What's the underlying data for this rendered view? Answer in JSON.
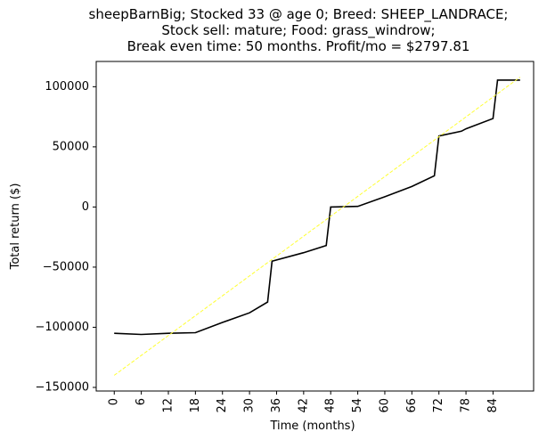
{
  "chart_data": {
    "type": "line",
    "title_lines": [
      "sheepBarnBig; Stocked 33 @ age 0; Breed: SHEEP_LANDRACE;",
      "Stock sell: mature; Food: grass_windrow;",
      "Break even time: 50 months. Profit/mo = $2797.81"
    ],
    "xlabel": "Time (months)",
    "ylabel": "Total return ($)",
    "xlim": [
      -4,
      93
    ],
    "ylim": [
      -153000,
      121000
    ],
    "x_ticks": [
      "0",
      "6",
      "12",
      "18",
      "24",
      "30",
      "36",
      "42",
      "48",
      "54",
      "60",
      "66",
      "72",
      "78",
      "84"
    ],
    "y_ticks": [
      "100000",
      "50000",
      "0",
      "−50000",
      "−100000",
      "−150000"
    ],
    "series": [
      {
        "color": "#000000",
        "style": "solid",
        "x": [
          0,
          6,
          12,
          18,
          24,
          30,
          34,
          35,
          42,
          47,
          48,
          54,
          60,
          66,
          71,
          72,
          77,
          78,
          84,
          85,
          90
        ],
        "y": [
          -105000,
          -106000,
          -105000,
          -104500,
          -96000,
          -88000,
          -79000,
          -45000,
          -38000,
          -32000,
          0,
          500,
          8500,
          17000,
          26000,
          59000,
          63000,
          65000,
          73500,
          105500,
          105500
        ]
      },
      {
        "color": "#ffff33",
        "style": "dashed",
        "x": [
          0,
          90
        ],
        "y": [
          -140000,
          108000
        ]
      }
    ],
    "grid": false,
    "legend": "none"
  }
}
